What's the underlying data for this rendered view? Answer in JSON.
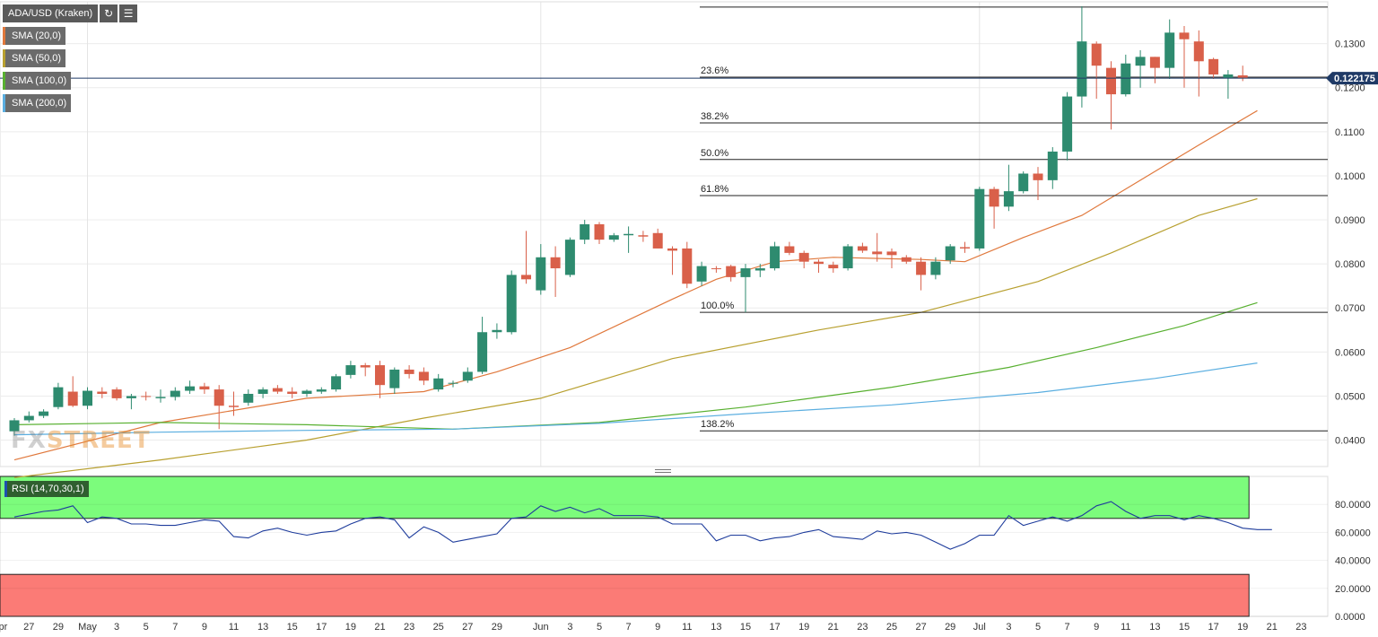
{
  "header": {
    "symbol": "ADA/USD (Kraken)",
    "refresh_icon": "refresh-icon",
    "settings_icon": "chart-settings-icon"
  },
  "indicators": [
    {
      "label": "SMA (20,0)",
      "color": "#e0783c"
    },
    {
      "label": "SMA (50,0)",
      "color": "#b8a030"
    },
    {
      "label": "SMA (100,0)",
      "color": "#58b030"
    },
    {
      "label": "SMA (200,0)",
      "color": "#5aaee0"
    }
  ],
  "watermark": {
    "part1": "FX",
    "part2": "STREET"
  },
  "last_price": {
    "label": "0.122175",
    "value": 0.122175
  },
  "rsi": {
    "label": "RSI (14,70,30,1)",
    "overbought": 70,
    "oversold": 30,
    "ticks": [
      "80.0000",
      "60.0000",
      "40.0000",
      "20.0000",
      "0.0000"
    ],
    "tick_values": [
      80,
      60,
      40,
      20,
      0
    ],
    "values": [
      71,
      73,
      75,
      76,
      79,
      67,
      71,
      70,
      66,
      66,
      65,
      65,
      67,
      69,
      68,
      57,
      56,
      61,
      63,
      60,
      58,
      60,
      61,
      66,
      70,
      71,
      69,
      56,
      64,
      60,
      53,
      55,
      57,
      59,
      70,
      71,
      79,
      75,
      78,
      74,
      77,
      72,
      72,
      72,
      71,
      66,
      66,
      66,
      54,
      58,
      58,
      54,
      56,
      57,
      60,
      62,
      57,
      56,
      55,
      61,
      59,
      60,
      58,
      53,
      48,
      52,
      58,
      58,
      72,
      65,
      68,
      71,
      68,
      72,
      79,
      82,
      75,
      70,
      72,
      72,
      69,
      72,
      70,
      67,
      63,
      62,
      62
    ]
  },
  "chart_data": {
    "type": "candlestick",
    "title": "ADA/USD (Kraken)",
    "ylim": [
      0.034,
      0.1395
    ],
    "y_ticks": [
      "0.1300",
      "0.1200",
      "0.1100",
      "0.1000",
      "0.0900",
      "0.0800",
      "0.0700",
      "0.0600",
      "0.0500",
      "0.0400"
    ],
    "y_tick_values": [
      0.13,
      0.12,
      0.11,
      0.1,
      0.09,
      0.08,
      0.07,
      0.06,
      0.05,
      0.04
    ],
    "x_ticks": [
      {
        "label": "Apr",
        "day": -1
      },
      {
        "label": "27",
        "day": 1
      },
      {
        "label": "29",
        "day": 3
      },
      {
        "label": "May",
        "day": 5
      },
      {
        "label": "3",
        "day": 7
      },
      {
        "label": "5",
        "day": 9
      },
      {
        "label": "7",
        "day": 11
      },
      {
        "label": "9",
        "day": 13
      },
      {
        "label": "11",
        "day": 15
      },
      {
        "label": "13",
        "day": 17
      },
      {
        "label": "15",
        "day": 19
      },
      {
        "label": "17",
        "day": 21
      },
      {
        "label": "19",
        "day": 23
      },
      {
        "label": "21",
        "day": 25
      },
      {
        "label": "23",
        "day": 27
      },
      {
        "label": "25",
        "day": 29
      },
      {
        "label": "27",
        "day": 31
      },
      {
        "label": "29",
        "day": 33
      },
      {
        "label": "Jun",
        "day": 36
      },
      {
        "label": "3",
        "day": 38
      },
      {
        "label": "5",
        "day": 40
      },
      {
        "label": "7",
        "day": 42
      },
      {
        "label": "9",
        "day": 44
      },
      {
        "label": "11",
        "day": 46
      },
      {
        "label": "13",
        "day": 48
      },
      {
        "label": "15",
        "day": 50
      },
      {
        "label": "17",
        "day": 52
      },
      {
        "label": "19",
        "day": 54
      },
      {
        "label": "21",
        "day": 56
      },
      {
        "label": "23",
        "day": 58
      },
      {
        "label": "25",
        "day": 60
      },
      {
        "label": "27",
        "day": 62
      },
      {
        "label": "29",
        "day": 64
      },
      {
        "label": "Jul",
        "day": 66
      },
      {
        "label": "3",
        "day": 68
      },
      {
        "label": "5",
        "day": 70
      },
      {
        "label": "7",
        "day": 72
      },
      {
        "label": "9",
        "day": 74
      },
      {
        "label": "11",
        "day": 76
      },
      {
        "label": "13",
        "day": 78
      },
      {
        "label": "15",
        "day": 80
      },
      {
        "label": "17",
        "day": 82
      },
      {
        "label": "19",
        "day": 84
      },
      {
        "label": "21",
        "day": 86
      },
      {
        "label": "23",
        "day": 88
      }
    ],
    "candles": [
      {
        "o": 0.042,
        "h": 0.045,
        "l": 0.041,
        "c": 0.0445
      },
      {
        "o": 0.0445,
        "h": 0.0465,
        "l": 0.044,
        "c": 0.0455
      },
      {
        "o": 0.0455,
        "h": 0.047,
        "l": 0.045,
        "c": 0.0465
      },
      {
        "o": 0.0475,
        "h": 0.053,
        "l": 0.047,
        "c": 0.052
      },
      {
        "o": 0.051,
        "h": 0.0545,
        "l": 0.0475,
        "c": 0.0478
      },
      {
        "o": 0.0478,
        "h": 0.052,
        "l": 0.047,
        "c": 0.0512
      },
      {
        "o": 0.051,
        "h": 0.052,
        "l": 0.0495,
        "c": 0.0505
      },
      {
        "o": 0.0515,
        "h": 0.052,
        "l": 0.049,
        "c": 0.0495
      },
      {
        "o": 0.0495,
        "h": 0.0505,
        "l": 0.047,
        "c": 0.05
      },
      {
        "o": 0.05,
        "h": 0.051,
        "l": 0.049,
        "c": 0.0498
      },
      {
        "o": 0.0495,
        "h": 0.0515,
        "l": 0.0485,
        "c": 0.0498
      },
      {
        "o": 0.0498,
        "h": 0.052,
        "l": 0.049,
        "c": 0.0512
      },
      {
        "o": 0.0512,
        "h": 0.0535,
        "l": 0.0505,
        "c": 0.0522
      },
      {
        "o": 0.0522,
        "h": 0.053,
        "l": 0.0505,
        "c": 0.0515
      },
      {
        "o": 0.0515,
        "h": 0.0525,
        "l": 0.0425,
        "c": 0.0478
      },
      {
        "o": 0.0478,
        "h": 0.051,
        "l": 0.0455,
        "c": 0.0475
      },
      {
        "o": 0.0485,
        "h": 0.0515,
        "l": 0.0478,
        "c": 0.0505
      },
      {
        "o": 0.0505,
        "h": 0.052,
        "l": 0.0495,
        "c": 0.0515
      },
      {
        "o": 0.0518,
        "h": 0.0525,
        "l": 0.0505,
        "c": 0.051
      },
      {
        "o": 0.051,
        "h": 0.052,
        "l": 0.0495,
        "c": 0.0505
      },
      {
        "o": 0.0505,
        "h": 0.0515,
        "l": 0.0498,
        "c": 0.0512
      },
      {
        "o": 0.051,
        "h": 0.052,
        "l": 0.0505,
        "c": 0.0515
      },
      {
        "o": 0.0515,
        "h": 0.055,
        "l": 0.051,
        "c": 0.0545
      },
      {
        "o": 0.0548,
        "h": 0.058,
        "l": 0.054,
        "c": 0.057
      },
      {
        "o": 0.057,
        "h": 0.0575,
        "l": 0.0545,
        "c": 0.0565
      },
      {
        "o": 0.057,
        "h": 0.058,
        "l": 0.0495,
        "c": 0.0525
      },
      {
        "o": 0.0518,
        "h": 0.0565,
        "l": 0.0505,
        "c": 0.056
      },
      {
        "o": 0.056,
        "h": 0.057,
        "l": 0.054,
        "c": 0.055
      },
      {
        "o": 0.0555,
        "h": 0.0565,
        "l": 0.0525,
        "c": 0.0535
      },
      {
        "o": 0.0515,
        "h": 0.055,
        "l": 0.051,
        "c": 0.054
      },
      {
        "o": 0.0528,
        "h": 0.0535,
        "l": 0.052,
        "c": 0.053
      },
      {
        "o": 0.0535,
        "h": 0.0565,
        "l": 0.053,
        "c": 0.0555
      },
      {
        "o": 0.0555,
        "h": 0.068,
        "l": 0.055,
        "c": 0.0645
      },
      {
        "o": 0.0645,
        "h": 0.0665,
        "l": 0.063,
        "c": 0.065
      },
      {
        "o": 0.0645,
        "h": 0.0785,
        "l": 0.064,
        "c": 0.0775
      },
      {
        "o": 0.0775,
        "h": 0.0875,
        "l": 0.0755,
        "c": 0.0765
      },
      {
        "o": 0.074,
        "h": 0.0845,
        "l": 0.073,
        "c": 0.0815
      },
      {
        "o": 0.0815,
        "h": 0.084,
        "l": 0.0725,
        "c": 0.079
      },
      {
        "o": 0.0775,
        "h": 0.086,
        "l": 0.077,
        "c": 0.0855
      },
      {
        "o": 0.0855,
        "h": 0.09,
        "l": 0.0845,
        "c": 0.089
      },
      {
        "o": 0.089,
        "h": 0.0895,
        "l": 0.0845,
        "c": 0.0855
      },
      {
        "o": 0.0855,
        "h": 0.087,
        "l": 0.085,
        "c": 0.0865
      },
      {
        "o": 0.0865,
        "h": 0.0885,
        "l": 0.0825,
        "c": 0.0868
      },
      {
        "o": 0.0865,
        "h": 0.0875,
        "l": 0.085,
        "c": 0.0862
      },
      {
        "o": 0.087,
        "h": 0.088,
        "l": 0.0835,
        "c": 0.0835
      },
      {
        "o": 0.0835,
        "h": 0.084,
        "l": 0.0775,
        "c": 0.083
      },
      {
        "o": 0.0835,
        "h": 0.085,
        "l": 0.0745,
        "c": 0.0755
      },
      {
        "o": 0.076,
        "h": 0.0805,
        "l": 0.075,
        "c": 0.0795
      },
      {
        "o": 0.079,
        "h": 0.0795,
        "l": 0.078,
        "c": 0.0788
      },
      {
        "o": 0.0795,
        "h": 0.0798,
        "l": 0.076,
        "c": 0.077
      },
      {
        "o": 0.077,
        "h": 0.08,
        "l": 0.069,
        "c": 0.079
      },
      {
        "o": 0.0785,
        "h": 0.08,
        "l": 0.077,
        "c": 0.079
      },
      {
        "o": 0.079,
        "h": 0.085,
        "l": 0.0785,
        "c": 0.084
      },
      {
        "o": 0.084,
        "h": 0.085,
        "l": 0.082,
        "c": 0.0825
      },
      {
        "o": 0.0825,
        "h": 0.083,
        "l": 0.079,
        "c": 0.0805
      },
      {
        "o": 0.0805,
        "h": 0.081,
        "l": 0.078,
        "c": 0.08
      },
      {
        "o": 0.0798,
        "h": 0.0805,
        "l": 0.078,
        "c": 0.079
      },
      {
        "o": 0.079,
        "h": 0.0845,
        "l": 0.0785,
        "c": 0.084
      },
      {
        "o": 0.084,
        "h": 0.0848,
        "l": 0.0825,
        "c": 0.083
      },
      {
        "o": 0.0828,
        "h": 0.087,
        "l": 0.0805,
        "c": 0.0822
      },
      {
        "o": 0.0828,
        "h": 0.0835,
        "l": 0.079,
        "c": 0.082
      },
      {
        "o": 0.0815,
        "h": 0.082,
        "l": 0.08,
        "c": 0.0805
      },
      {
        "o": 0.0805,
        "h": 0.0815,
        "l": 0.074,
        "c": 0.0775
      },
      {
        "o": 0.0775,
        "h": 0.0815,
        "l": 0.0765,
        "c": 0.0805
      },
      {
        "o": 0.0808,
        "h": 0.0845,
        "l": 0.08,
        "c": 0.084
      },
      {
        "o": 0.0838,
        "h": 0.085,
        "l": 0.0825,
        "c": 0.0835
      },
      {
        "o": 0.0835,
        "h": 0.0975,
        "l": 0.083,
        "c": 0.097
      },
      {
        "o": 0.097,
        "h": 0.0975,
        "l": 0.088,
        "c": 0.093
      },
      {
        "o": 0.093,
        "h": 0.1025,
        "l": 0.092,
        "c": 0.0965
      },
      {
        "o": 0.0965,
        "h": 0.101,
        "l": 0.096,
        "c": 0.1005
      },
      {
        "o": 0.1005,
        "h": 0.102,
        "l": 0.0945,
        "c": 0.099
      },
      {
        "o": 0.099,
        "h": 0.1065,
        "l": 0.097,
        "c": 0.1055
      },
      {
        "o": 0.1055,
        "h": 0.119,
        "l": 0.1035,
        "c": 0.118
      },
      {
        "o": 0.118,
        "h": 0.1385,
        "l": 0.1155,
        "c": 0.1305
      },
      {
        "o": 0.13,
        "h": 0.1305,
        "l": 0.1175,
        "c": 0.125
      },
      {
        "o": 0.1245,
        "h": 0.126,
        "l": 0.1105,
        "c": 0.1185
      },
      {
        "o": 0.1185,
        "h": 0.1275,
        "l": 0.118,
        "c": 0.1255
      },
      {
        "o": 0.125,
        "h": 0.1285,
        "l": 0.12,
        "c": 0.127
      },
      {
        "o": 0.127,
        "h": 0.127,
        "l": 0.121,
        "c": 0.1245
      },
      {
        "o": 0.1245,
        "h": 0.1355,
        "l": 0.122,
        "c": 0.1325
      },
      {
        "o": 0.1325,
        "h": 0.134,
        "l": 0.12,
        "c": 0.131
      },
      {
        "o": 0.1305,
        "h": 0.133,
        "l": 0.118,
        "c": 0.126
      },
      {
        "o": 0.1265,
        "h": 0.1268,
        "l": 0.122,
        "c": 0.123
      },
      {
        "o": 0.1222,
        "h": 0.124,
        "l": 0.1175,
        "c": 0.123
      },
      {
        "o": 0.1228,
        "h": 0.125,
        "l": 0.1215,
        "c": 0.1222
      }
    ],
    "sma": [
      {
        "name": "SMA (20,0)",
        "color": "#e0783c",
        "points": [
          [
            0,
            0.0355
          ],
          [
            10,
            0.044
          ],
          [
            20,
            0.0495
          ],
          [
            28,
            0.051
          ],
          [
            33,
            0.0555
          ],
          [
            38,
            0.061
          ],
          [
            45,
            0.072
          ],
          [
            48,
            0.0765
          ],
          [
            52,
            0.0805
          ],
          [
            56,
            0.0815
          ],
          [
            62,
            0.081
          ],
          [
            65,
            0.0805
          ],
          [
            69,
            0.086
          ],
          [
            73,
            0.091
          ],
          [
            77,
            0.099
          ],
          [
            81,
            0.107
          ],
          [
            85,
            0.1148
          ]
        ]
      },
      {
        "name": "SMA (50,0)",
        "color": "#b8a030",
        "points": [
          [
            0,
            0.0315
          ],
          [
            10,
            0.0355
          ],
          [
            20,
            0.04
          ],
          [
            28,
            0.045
          ],
          [
            36,
            0.0495
          ],
          [
            45,
            0.0585
          ],
          [
            55,
            0.065
          ],
          [
            62,
            0.069
          ],
          [
            70,
            0.076
          ],
          [
            75,
            0.0825
          ],
          [
            81,
            0.091
          ],
          [
            85,
            0.0948
          ]
        ]
      },
      {
        "name": "SMA (100,0)",
        "color": "#58b030",
        "points": [
          [
            0,
            0.0435
          ],
          [
            10,
            0.044
          ],
          [
            20,
            0.0435
          ],
          [
            30,
            0.0425
          ],
          [
            40,
            0.044
          ],
          [
            50,
            0.0475
          ],
          [
            60,
            0.052
          ],
          [
            68,
            0.0565
          ],
          [
            74,
            0.061
          ],
          [
            80,
            0.066
          ],
          [
            85,
            0.0712
          ]
        ]
      },
      {
        "name": "SMA (200,0)",
        "color": "#5aaee0",
        "points": [
          [
            0,
            0.0412
          ],
          [
            10,
            0.0418
          ],
          [
            20,
            0.0422
          ],
          [
            30,
            0.0425
          ],
          [
            40,
            0.0438
          ],
          [
            50,
            0.046
          ],
          [
            60,
            0.048
          ],
          [
            70,
            0.0508
          ],
          [
            78,
            0.054
          ],
          [
            85,
            0.0575
          ]
        ]
      }
    ],
    "fib_levels": [
      {
        "label": "",
        "value": 0.1383,
        "show_label": false
      },
      {
        "label": "23.6%",
        "value": 0.1224
      },
      {
        "label": "38.2%",
        "value": 0.112
      },
      {
        "label": "50.0%",
        "value": 0.1037
      },
      {
        "label": "61.8%",
        "value": 0.0955
      },
      {
        "label": "100.0%",
        "value": 0.069
      },
      {
        "label": "138.2%",
        "value": 0.0421
      }
    ],
    "colors": {
      "up": "#2e8b6f",
      "down": "#d9604a",
      "grid": "#ececec",
      "price_line": "#1f3a66"
    }
  }
}
